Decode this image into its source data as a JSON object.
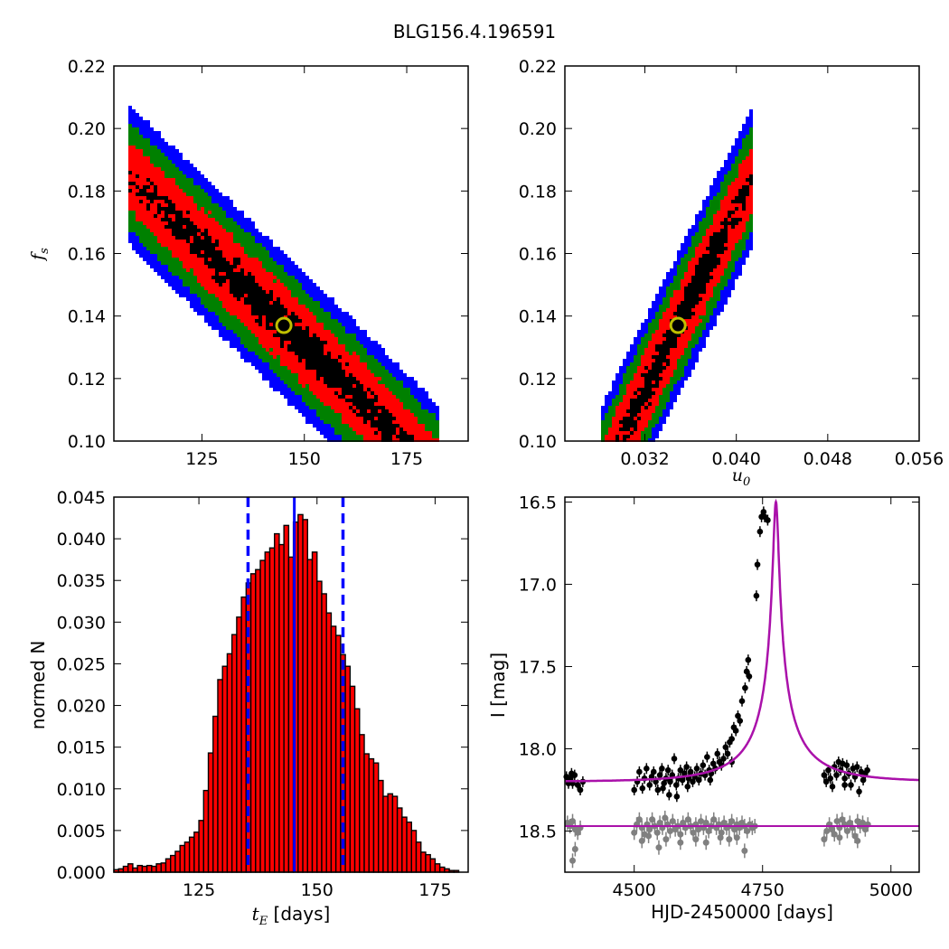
{
  "figure": {
    "title": "BLG156.4.196591"
  },
  "chart_data": [
    {
      "panel": "top-left",
      "type": "heatmap",
      "ylabel": "f_s",
      "ylabel_main": "f",
      "ylabel_sub": "s",
      "xlim": [
        103.5,
        190
      ],
      "ylim": [
        0.1,
        0.22
      ],
      "xticks": [
        125,
        150,
        175
      ],
      "yticks": [
        "0.10",
        "0.12",
        "0.14",
        "0.16",
        "0.18",
        "0.20",
        "0.22"
      ],
      "best_fit": {
        "x": 145,
        "y": 0.137
      },
      "density_colors": [
        "#0000ff",
        "#008000",
        "#ff0000",
        "#000000"
      ],
      "marker_color": "#bfbf00"
    },
    {
      "panel": "top-right",
      "type": "heatmap",
      "xlabel": "u_0",
      "xlabel_main": "u",
      "xlabel_sub": "0",
      "xlim": [
        0.025,
        0.056
      ],
      "ylim": [
        0.1,
        0.22
      ],
      "xticks": [
        "0.032",
        "0.040",
        "0.048",
        "0.056"
      ],
      "yticks": [
        "0.10",
        "0.12",
        "0.14",
        "0.16",
        "0.18",
        "0.20",
        "0.22"
      ],
      "best_fit": {
        "x": 0.0349,
        "y": 0.137
      },
      "density_colors": [
        "#0000ff",
        "#008000",
        "#ff0000",
        "#000000"
      ],
      "marker_color": "#bfbf00"
    },
    {
      "panel": "bottom-left",
      "type": "bar",
      "xlabel": "t_E [days]",
      "xlabel_main": "t",
      "xlabel_sub": "E",
      "xlabel_unit": " [days]",
      "ylabel": "normed N",
      "xlim": [
        107,
        182
      ],
      "ylim": [
        0,
        0.045
      ],
      "xticks": [
        125,
        150,
        175
      ],
      "yticks": [
        "0.000",
        "0.005",
        "0.010",
        "0.015",
        "0.020",
        "0.025",
        "0.030",
        "0.035",
        "0.040",
        "0.045"
      ],
      "bin_start": 107,
      "bin_width": 1,
      "values": [
        0.0003,
        0.0004,
        0.0007,
        0.001,
        0.0005,
        0.0008,
        0.0007,
        0.0008,
        0.0007,
        0.001,
        0.0011,
        0.0016,
        0.002,
        0.0025,
        0.0032,
        0.0036,
        0.0042,
        0.0048,
        0.0062,
        0.0098,
        0.0143,
        0.0187,
        0.0231,
        0.0247,
        0.0262,
        0.0285,
        0.0306,
        0.033,
        0.0347,
        0.0358,
        0.0363,
        0.0374,
        0.0384,
        0.0389,
        0.0406,
        0.0393,
        0.0416,
        0.0378,
        0.042,
        0.0429,
        0.0423,
        0.0375,
        0.0384,
        0.0349,
        0.0334,
        0.0311,
        0.0295,
        0.0284,
        0.0261,
        0.0247,
        0.0223,
        0.0196,
        0.0165,
        0.0142,
        0.0136,
        0.0131,
        0.011,
        0.0091,
        0.0094,
        0.0091,
        0.0077,
        0.0066,
        0.006,
        0.005,
        0.0036,
        0.0024,
        0.0021,
        0.0016,
        0.001,
        0.0006,
        0.0004,
        0.0002,
        0.0002
      ],
      "bar_color": "#ff0000",
      "median": 145.2,
      "lower": 135.4,
      "upper": 155.5,
      "line_color": "#0000ff"
    },
    {
      "panel": "bottom-right",
      "type": "scatter",
      "xlabel": "HJD-2450000 [days]",
      "ylabel": "I [mag]",
      "xlim": [
        4365,
        5055
      ],
      "ylim": [
        18.75,
        16.47
      ],
      "xticks": [
        4500,
        4750,
        5000
      ],
      "yticks": [
        "16.5",
        "17.0",
        "17.5",
        "18.0",
        "18.5"
      ],
      "model": {
        "t0": 4776,
        "tE": 145.2,
        "u0": 0.0349,
        "fs": 0.137,
        "baseline": 18.2
      },
      "model_color": "#aa11aa",
      "residual_line_color": "#aa11aa",
      "data_points": [
        [
          4368,
          18.17
        ],
        [
          4372,
          18.19
        ],
        [
          4376,
          18.18
        ],
        [
          4380,
          18.21
        ],
        [
          4384,
          18.16
        ],
        [
          4390,
          18.22
        ],
        [
          4395,
          18.25
        ],
        [
          4400,
          18.2
        ],
        [
          4372,
          18.21
        ],
        [
          4378,
          18.15
        ],
        [
          4500,
          18.25
        ],
        [
          4506,
          18.2
        ],
        [
          4510,
          18.14
        ],
        [
          4516,
          18.24
        ],
        [
          4520,
          18.18
        ],
        [
          4524,
          18.12
        ],
        [
          4530,
          18.22
        ],
        [
          4534,
          18.17
        ],
        [
          4538,
          18.14
        ],
        [
          4542,
          18.2
        ],
        [
          4546,
          18.25
        ],
        [
          4550,
          18.16
        ],
        [
          4554,
          18.12
        ],
        [
          4558,
          18.21
        ],
        [
          4562,
          18.18
        ],
        [
          4566,
          18.13
        ],
        [
          4570,
          18.2
        ],
        [
          4574,
          18.16
        ],
        [
          4578,
          18.06
        ],
        [
          4582,
          18.22
        ],
        [
          4586,
          18.18
        ],
        [
          4590,
          18.13
        ],
        [
          4594,
          18.19
        ],
        [
          4598,
          18.15
        ],
        [
          4602,
          18.11
        ],
        [
          4606,
          18.18
        ],
        [
          4610,
          18.14
        ],
        [
          4614,
          18.2
        ],
        [
          4618,
          18.17
        ],
        [
          4622,
          18.12
        ],
        [
          4626,
          18.19
        ],
        [
          4630,
          18.15
        ],
        [
          4634,
          18.1
        ],
        [
          4638,
          18.16
        ],
        [
          4642,
          18.05
        ],
        [
          4646,
          18.13
        ],
        [
          4650,
          18.15
        ],
        [
          4654,
          18.09
        ],
        [
          4658,
          18.12
        ],
        [
          4662,
          18.03
        ],
        [
          4666,
          18.08
        ],
        [
          4670,
          18.1
        ],
        [
          4674,
          18.06
        ],
        [
          4678,
          17.99
        ],
        [
          4682,
          18.03
        ],
        [
          4686,
          17.96
        ],
        [
          4690,
          17.94
        ],
        [
          4694,
          17.87
        ],
        [
          4698,
          17.89
        ],
        [
          4702,
          17.8
        ],
        [
          4706,
          17.83
        ],
        [
          4710,
          17.71
        ],
        [
          4716,
          17.63
        ],
        [
          4719,
          17.53
        ],
        [
          4722,
          17.46
        ],
        [
          4724,
          17.56
        ],
        [
          4738,
          17.07
        ],
        [
          4740,
          16.88
        ],
        [
          4745,
          16.68
        ],
        [
          4748,
          16.59
        ],
        [
          4752,
          16.56
        ],
        [
          4754,
          16.59
        ],
        [
          4760,
          16.61
        ],
        [
          4556,
          18.24
        ],
        [
          4568,
          18.28
        ],
        [
          4583,
          18.29
        ],
        [
          4604,
          18.23
        ],
        [
          4648,
          18.19
        ],
        [
          4690,
          18.08
        ],
        [
          4870,
          18.16
        ],
        [
          4874,
          18.2
        ],
        [
          4878,
          18.13
        ],
        [
          4882,
          18.18
        ],
        [
          4886,
          18.23
        ],
        [
          4890,
          18.11
        ],
        [
          4894,
          18.16
        ],
        [
          4898,
          18.08
        ],
        [
          4902,
          18.13
        ],
        [
          4906,
          18.09
        ],
        [
          4910,
          18.18
        ],
        [
          4914,
          18.1
        ],
        [
          4918,
          18.15
        ],
        [
          4922,
          18.22
        ],
        [
          4926,
          18.12
        ],
        [
          4930,
          18.17
        ],
        [
          4934,
          18.11
        ],
        [
          4938,
          18.26
        ],
        [
          4942,
          18.14
        ],
        [
          4946,
          18.19
        ],
        [
          4950,
          18.15
        ],
        [
          4954,
          18.13
        ],
        [
          4910,
          18.22
        ]
      ],
      "residual_points": [
        [
          4370,
          18.45
        ],
        [
          4375,
          18.47
        ],
        [
          4380,
          18.44
        ],
        [
          4385,
          18.49
        ],
        [
          4390,
          18.51
        ],
        [
          4395,
          18.48
        ],
        [
          4380,
          18.68
        ],
        [
          4385,
          18.61
        ],
        [
          4500,
          18.51
        ],
        [
          4505,
          18.46
        ],
        [
          4510,
          18.43
        ],
        [
          4515,
          18.48
        ],
        [
          4520,
          18.52
        ],
        [
          4525,
          18.46
        ],
        [
          4530,
          18.49
        ],
        [
          4535,
          18.43
        ],
        [
          4540,
          18.47
        ],
        [
          4545,
          18.51
        ],
        [
          4550,
          18.45
        ],
        [
          4555,
          18.48
        ],
        [
          4560,
          18.42
        ],
        [
          4565,
          18.46
        ],
        [
          4570,
          18.5
        ],
        [
          4575,
          18.44
        ],
        [
          4580,
          18.49
        ],
        [
          4585,
          18.47
        ],
        [
          4590,
          18.52
        ],
        [
          4595,
          18.45
        ],
        [
          4600,
          18.48
        ],
        [
          4605,
          18.43
        ],
        [
          4610,
          18.47
        ],
        [
          4615,
          18.51
        ],
        [
          4620,
          18.46
        ],
        [
          4625,
          18.49
        ],
        [
          4630,
          18.44
        ],
        [
          4635,
          18.48
        ],
        [
          4640,
          18.45
        ],
        [
          4645,
          18.5
        ],
        [
          4650,
          18.47
        ],
        [
          4655,
          18.43
        ],
        [
          4660,
          18.48
        ],
        [
          4665,
          18.46
        ],
        [
          4670,
          18.51
        ],
        [
          4675,
          18.45
        ],
        [
          4680,
          18.48
        ],
        [
          4685,
          18.47
        ],
        [
          4690,
          18.44
        ],
        [
          4695,
          18.49
        ],
        [
          4700,
          18.46
        ],
        [
          4705,
          18.48
        ],
        [
          4710,
          18.45
        ],
        [
          4715,
          18.47
        ],
        [
          4720,
          18.5
        ],
        [
          4725,
          18.46
        ],
        [
          4730,
          18.48
        ],
        [
          4735,
          18.47
        ],
        [
          4515,
          18.56
        ],
        [
          4528,
          18.53
        ],
        [
          4548,
          18.6
        ],
        [
          4562,
          18.55
        ],
        [
          4590,
          18.57
        ],
        [
          4620,
          18.55
        ],
        [
          4640,
          18.57
        ],
        [
          4668,
          18.54
        ],
        [
          4685,
          18.55
        ],
        [
          4700,
          18.54
        ],
        [
          4715,
          18.62
        ],
        [
          4870,
          18.55
        ],
        [
          4875,
          18.5
        ],
        [
          4880,
          18.46
        ],
        [
          4885,
          18.49
        ],
        [
          4890,
          18.52
        ],
        [
          4895,
          18.44
        ],
        [
          4900,
          18.48
        ],
        [
          4905,
          18.43
        ],
        [
          4910,
          18.46
        ],
        [
          4915,
          18.5
        ],
        [
          4920,
          18.45
        ],
        [
          4925,
          18.48
        ],
        [
          4930,
          18.53
        ],
        [
          4935,
          18.44
        ],
        [
          4940,
          18.47
        ],
        [
          4945,
          18.45
        ],
        [
          4950,
          18.49
        ],
        [
          4955,
          18.46
        ],
        [
          4900,
          18.54
        ],
        [
          4935,
          18.56
        ]
      ],
      "data_color": "#000000",
      "residual_color": "#808080"
    }
  ]
}
